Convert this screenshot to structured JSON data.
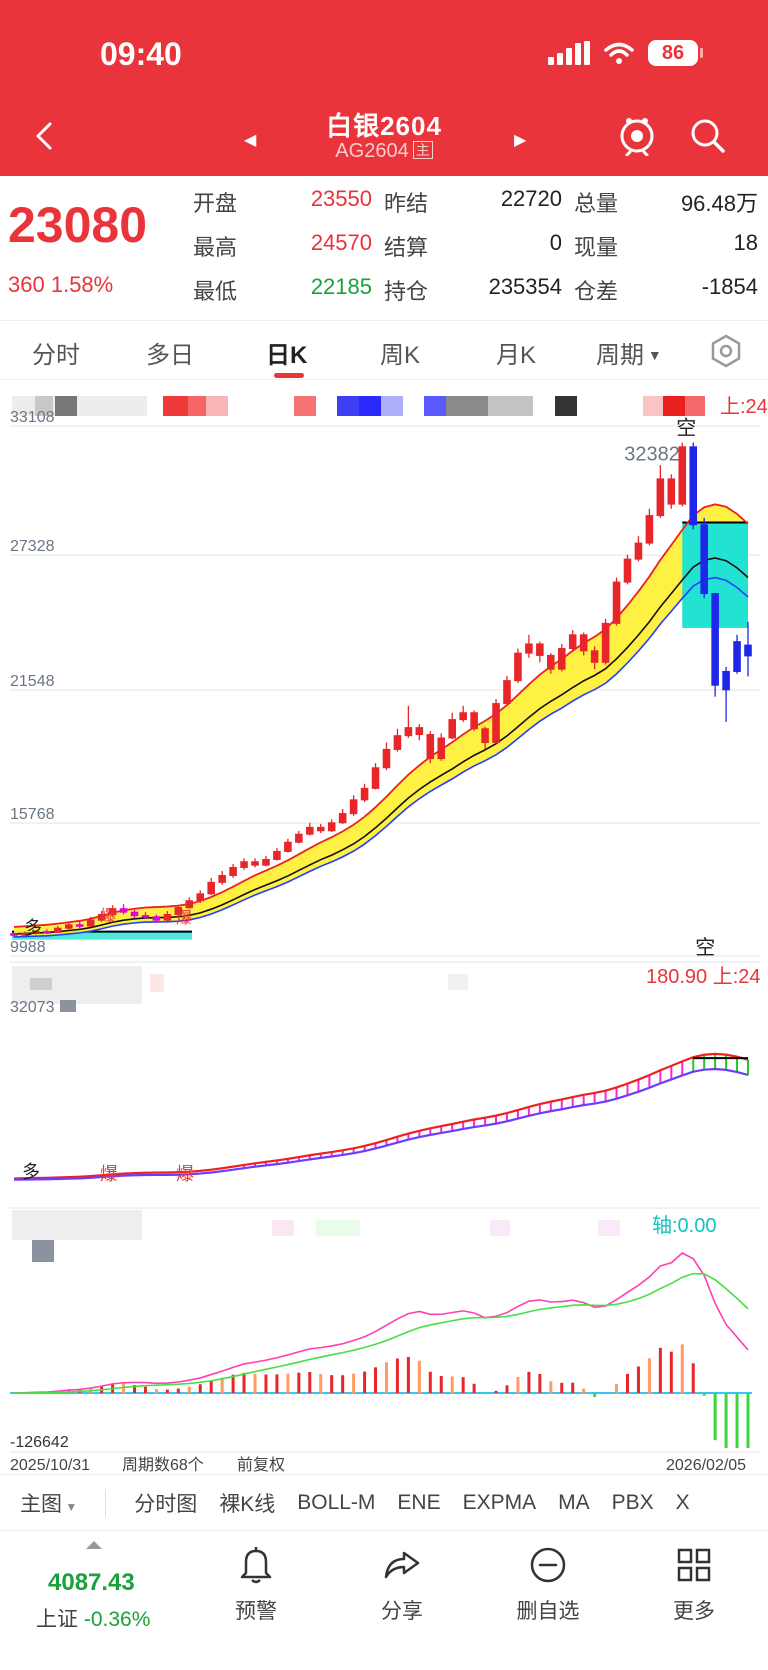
{
  "status": {
    "time": "09:40",
    "battery": "86"
  },
  "nav": {
    "title": "白银2604",
    "code": "AG2604",
    "tag": "主"
  },
  "quote": {
    "price": "23080",
    "change": "360",
    "change_pct": "1.58%",
    "fields": [
      {
        "label": "开盘",
        "value": "23550",
        "color": "red"
      },
      {
        "label": "昨结",
        "value": "22720",
        "color": "black"
      },
      {
        "label": "总量",
        "value": "96.48万",
        "color": "black"
      },
      {
        "label": "最高",
        "value": "24570",
        "color": "red"
      },
      {
        "label": "结算",
        "value": "0",
        "color": "black"
      },
      {
        "label": "现量",
        "value": "18",
        "color": "black"
      },
      {
        "label": "最低",
        "value": "22185",
        "color": "green"
      },
      {
        "label": "持仓",
        "value": "235354",
        "color": "black"
      },
      {
        "label": "仓差",
        "value": "-1854",
        "color": "black"
      }
    ]
  },
  "tabs": {
    "items": [
      "分时",
      "多日",
      "日K",
      "周K",
      "月K",
      "周期"
    ],
    "active": "日K"
  },
  "chart": {
    "main_axis": [
      "33108",
      "27328",
      "21548",
      "15768",
      "9988"
    ],
    "high_marker": "32382",
    "main_right_label": "上:24",
    "mid_right_label": "180.90 上:24",
    "mid_top_axis": "32073",
    "macd_label": "轴:0.00",
    "macd_bottom": "-126642",
    "signal_short": "空",
    "signal_long": "多",
    "signal_burst": "爆",
    "start_date": "2025/10/31",
    "period_count": "周期数68个",
    "adjust": "前复权",
    "end_date": "2026/02/05"
  },
  "chart_data": {
    "type": "candlestick",
    "period": "daily",
    "x_start": "2025/10/31",
    "x_end": "2026/02/05",
    "y_ticks": [
      9988,
      15768,
      21548,
      27328,
      33108
    ],
    "ylim": [
      9988,
      33108
    ],
    "annotations": [
      {
        "label": "32382",
        "type": "high"
      }
    ],
    "candles": [
      [
        10960,
        10900,
        11000,
        10800
      ],
      [
        10900,
        10980,
        11050,
        10850
      ],
      [
        10980,
        11050,
        11120,
        10920
      ],
      [
        11050,
        11020,
        11150,
        10950
      ],
      [
        11020,
        11200,
        11300,
        11000
      ],
      [
        11200,
        11350,
        11450,
        11150
      ],
      [
        11350,
        11300,
        11500,
        11200
      ],
      [
        11300,
        11550,
        11700,
        11250
      ],
      [
        11550,
        11800,
        11950,
        11500
      ],
      [
        11800,
        12050,
        12200,
        11750
      ],
      [
        12050,
        11900,
        12250,
        11800
      ],
      [
        11900,
        11750,
        12000,
        11650
      ],
      [
        11750,
        11700,
        11900,
        11600
      ],
      [
        11700,
        11550,
        11800,
        11450
      ],
      [
        11550,
        11800,
        11950,
        11500
      ],
      [
        11800,
        12100,
        12200,
        11750
      ],
      [
        12100,
        12400,
        12550,
        12050
      ],
      [
        12400,
        12700,
        12850,
        12300
      ],
      [
        12700,
        13200,
        13400,
        12650
      ],
      [
        13200,
        13500,
        13700,
        13100
      ],
      [
        13500,
        13850,
        14000,
        13400
      ],
      [
        13850,
        14100,
        14250,
        13750
      ],
      [
        14100,
        13950,
        14250,
        13850
      ],
      [
        13950,
        14200,
        14350,
        13900
      ],
      [
        14200,
        14550,
        14700,
        14150
      ],
      [
        14550,
        14950,
        15100,
        14500
      ],
      [
        14950,
        15300,
        15450,
        14900
      ],
      [
        15300,
        15600,
        15800,
        15250
      ],
      [
        15600,
        15450,
        15750,
        15350
      ],
      [
        15450,
        15800,
        15950,
        15400
      ],
      [
        15800,
        16200,
        16400,
        15750
      ],
      [
        16200,
        16800,
        17000,
        16100
      ],
      [
        16800,
        17300,
        17500,
        16700
      ],
      [
        17300,
        18200,
        18400,
        17250
      ],
      [
        18200,
        19000,
        19300,
        18100
      ],
      [
        19000,
        19600,
        19900,
        18900
      ],
      [
        19600,
        19950,
        20900,
        19500
      ],
      [
        19950,
        19650,
        20100,
        19400
      ],
      [
        19650,
        18600,
        19800,
        18400
      ],
      [
        18600,
        19500,
        19700,
        18500
      ],
      [
        19500,
        20300,
        20600,
        19450
      ],
      [
        20300,
        20600,
        20900,
        20200
      ],
      [
        20600,
        19900,
        20700,
        19800
      ],
      [
        19900,
        19300,
        20000,
        19000
      ],
      [
        19300,
        21000,
        21200,
        19250
      ],
      [
        21000,
        22000,
        22200,
        20900
      ],
      [
        22000,
        23200,
        23400,
        21900
      ],
      [
        23200,
        23600,
        24000,
        23000
      ],
      [
        23600,
        23100,
        23700,
        22800
      ],
      [
        23100,
        22500,
        23200,
        22300
      ],
      [
        22500,
        23400,
        23600,
        22400
      ],
      [
        23400,
        24000,
        24200,
        23300
      ],
      [
        24000,
        23300,
        24100,
        23100
      ],
      [
        23300,
        22800,
        23500,
        22500
      ],
      [
        22800,
        24500,
        24700,
        22700
      ],
      [
        24500,
        26300,
        26500,
        24400
      ],
      [
        26300,
        27300,
        27500,
        26200
      ],
      [
        27300,
        28000,
        28300,
        27200
      ],
      [
        28000,
        29200,
        29500,
        27900
      ],
      [
        29200,
        30800,
        31400,
        29100
      ],
      [
        30800,
        29700,
        31000,
        29500
      ],
      [
        29700,
        32200,
        32382,
        29600
      ],
      [
        32200,
        28800,
        32382,
        28600
      ],
      [
        28800,
        25800,
        29100,
        25600
      ],
      [
        25800,
        21800,
        25800,
        21300
      ],
      [
        21600,
        22400,
        22600,
        20200
      ],
      [
        22400,
        23700,
        24000,
        22300
      ],
      [
        23550,
        23080,
        24570,
        22185
      ]
    ],
    "moving_averages": [
      {
        "name": "",
        "values": [
          10950,
          10970,
          10990,
          11010,
          11050,
          11100,
          11150,
          11230,
          11340,
          11460,
          11550,
          11610,
          11650,
          11660,
          11670,
          11700,
          11760,
          11870,
          12030,
          12220,
          12440,
          12670,
          12890,
          13080,
          13270,
          13480,
          13720,
          13960,
          14190,
          14390,
          14620,
          14880,
          15200,
          15580,
          16000,
          16450,
          16880,
          17250,
          17580,
          17870,
          18150,
          18460,
          18740,
          18980,
          19250,
          19590,
          19990,
          20400,
          20780,
          21100,
          21380,
          21700,
          21990,
          22230,
          22520,
          22950,
          23450,
          23990,
          24570,
          25220,
          25800,
          26390,
          26950,
          27250,
          27350,
          27230,
          26920,
          26500
        ]
      }
    ]
  },
  "indicators": [
    "主图",
    "分时图",
    "裸K线",
    "BOLL-M",
    "ENE",
    "EXPMA",
    "MA",
    "PBX",
    "X"
  ],
  "bottom": {
    "index_value": "4087.43",
    "index_name": "上证",
    "index_change": "-0.36%",
    "actions": [
      {
        "label": "预警",
        "icon": "bell-icon"
      },
      {
        "label": "分享",
        "icon": "share-icon"
      },
      {
        "label": "删自选",
        "icon": "minus-circle-icon"
      },
      {
        "label": "更多",
        "icon": "grid-icon"
      }
    ]
  }
}
